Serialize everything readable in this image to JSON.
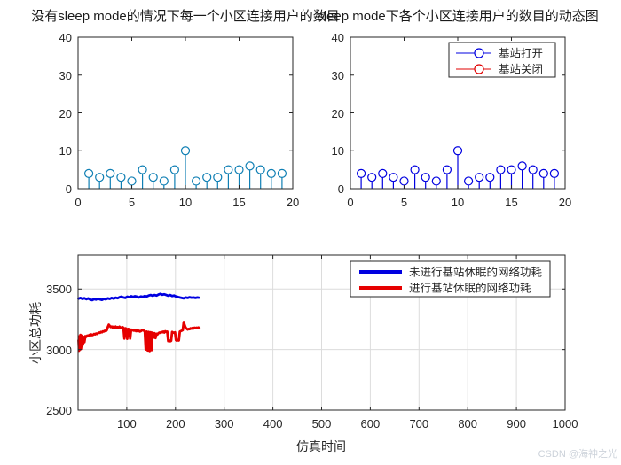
{
  "page": {
    "watermark": "CSDN @海神之光",
    "background": "#ffffff"
  },
  "chart_data": [
    {
      "type": "stem",
      "title": "没有sleep mode的情况下每一个小区连接用户的数目",
      "x": [
        1,
        2,
        3,
        4,
        5,
        6,
        7,
        8,
        9,
        10,
        11,
        12,
        13,
        14,
        15,
        16,
        17,
        18,
        19
      ],
      "values": [
        4,
        3,
        4,
        3,
        2,
        5,
        3,
        2,
        5,
        10,
        2,
        3,
        3,
        5,
        5,
        6,
        5,
        4,
        4
      ],
      "xlim": [
        0,
        20
      ],
      "ylim": [
        0,
        40
      ],
      "xticks": [
        0,
        5,
        10,
        15,
        20
      ],
      "yticks": [
        0,
        10,
        20,
        30,
        40
      ],
      "grid": false,
      "color": "#0f7fb4"
    },
    {
      "type": "stem",
      "title": "sleep mode下各个小区连接用户的数目的动态图",
      "x": [
        1,
        2,
        3,
        4,
        5,
        6,
        7,
        8,
        9,
        10,
        11,
        12,
        13,
        14,
        15,
        16,
        17,
        18,
        19
      ],
      "values": [
        4,
        3,
        4,
        3,
        2,
        5,
        3,
        2,
        5,
        10,
        2,
        3,
        3,
        5,
        5,
        6,
        5,
        4,
        4
      ],
      "xlim": [
        0,
        20
      ],
      "ylim": [
        0,
        40
      ],
      "xticks": [
        0,
        5,
        10,
        15,
        20
      ],
      "yticks": [
        0,
        10,
        20,
        30,
        40
      ],
      "grid": false,
      "color": "#0000e0",
      "legend": {
        "marker": "circle",
        "position": "top-right",
        "entries": [
          {
            "label": "基站打开",
            "color": "#0000e0"
          },
          {
            "label": "基站关闭",
            "color": "#e00000"
          }
        ]
      }
    },
    {
      "type": "line",
      "xlabel": "仿真时间",
      "ylabel": "小区总功耗",
      "xlim": [
        0,
        1000
      ],
      "ylim": [
        2500,
        3780
      ],
      "xticks": [
        100,
        200,
        300,
        400,
        500,
        600,
        700,
        800,
        900,
        1000
      ],
      "yticks": [
        2500,
        3000,
        3500
      ],
      "grid": true,
      "legend": {
        "marker": "line",
        "position": "top-right",
        "entries": [
          {
            "label": "未进行基站休眠的网络功耗",
            "color": "#0000e0"
          },
          {
            "label": "进行基站休眠的网络功耗",
            "color": "#e60000"
          }
        ]
      },
      "series": [
        {
          "name": "未进行基站休眠的网络功耗",
          "color": "#0000e0",
          "width": 2.8,
          "points": [
            [
              1,
              3420
            ],
            [
              5,
              3426
            ],
            [
              9,
              3418
            ],
            [
              13,
              3424
            ],
            [
              17,
              3416
            ],
            [
              21,
              3422
            ],
            [
              25,
              3412
            ],
            [
              29,
              3408
            ],
            [
              33,
              3416
            ],
            [
              37,
              3412
            ],
            [
              41,
              3420
            ],
            [
              45,
              3414
            ],
            [
              49,
              3410
            ],
            [
              53,
              3418
            ],
            [
              57,
              3414
            ],
            [
              61,
              3422
            ],
            [
              65,
              3418
            ],
            [
              69,
              3426
            ],
            [
              73,
              3420
            ],
            [
              77,
              3428
            ],
            [
              81,
              3424
            ],
            [
              85,
              3432
            ],
            [
              89,
              3436
            ],
            [
              93,
              3430
            ],
            [
              97,
              3426
            ],
            [
              101,
              3436
            ],
            [
              105,
              3432
            ],
            [
              109,
              3440
            ],
            [
              113,
              3434
            ],
            [
              117,
              3440
            ],
            [
              121,
              3436
            ],
            [
              125,
              3430
            ],
            [
              129,
              3438
            ],
            [
              133,
              3434
            ],
            [
              137,
              3442
            ],
            [
              141,
              3438
            ],
            [
              145,
              3446
            ],
            [
              149,
              3450
            ],
            [
              153,
              3444
            ],
            [
              157,
              3450
            ],
            [
              161,
              3446
            ],
            [
              165,
              3454
            ],
            [
              169,
              3460
            ],
            [
              173,
              3452
            ],
            [
              177,
              3456
            ],
            [
              181,
              3450
            ],
            [
              185,
              3444
            ],
            [
              189,
              3450
            ],
            [
              193,
              3442
            ],
            [
              197,
              3446
            ],
            [
              201,
              3438
            ],
            [
              205,
              3434
            ],
            [
              209,
              3430
            ],
            [
              213,
              3426
            ],
            [
              217,
              3422
            ],
            [
              221,
              3430
            ],
            [
              225,
              3426
            ],
            [
              229,
              3432
            ],
            [
              233,
              3428
            ],
            [
              237,
              3430
            ],
            [
              241,
              3426
            ],
            [
              245,
              3430
            ],
            [
              248,
              3428
            ]
          ]
        },
        {
          "name": "进行基站休眠的网络功耗",
          "color": "#e60000",
          "width": 2.8,
          "points": [
            [
              1,
              3075
            ],
            [
              2,
              2990
            ],
            [
              3,
              3110
            ],
            [
              4,
              3000
            ],
            [
              5,
              3120
            ],
            [
              6,
              3005
            ],
            [
              7,
              3115
            ],
            [
              8,
              3025
            ],
            [
              9,
              3110
            ],
            [
              10,
              3040
            ],
            [
              11,
              3105
            ],
            [
              13,
              3060
            ],
            [
              15,
              3110
            ],
            [
              17,
              3105
            ],
            [
              19,
              3115
            ],
            [
              21,
              3110
            ],
            [
              23,
              3120
            ],
            [
              25,
              3115
            ],
            [
              27,
              3125
            ],
            [
              29,
              3118
            ],
            [
              31,
              3122
            ],
            [
              33,
              3128
            ],
            [
              35,
              3125
            ],
            [
              37,
              3132
            ],
            [
              39,
              3128
            ],
            [
              41,
              3135
            ],
            [
              43,
              3140
            ],
            [
              45,
              3138
            ],
            [
              47,
              3145
            ],
            [
              49,
              3142
            ],
            [
              51,
              3150
            ],
            [
              53,
              3148
            ],
            [
              55,
              3155
            ],
            [
              57,
              3152
            ],
            [
              59,
              3160
            ],
            [
              61,
              3185
            ],
            [
              63,
              3205
            ],
            [
              65,
              3195
            ],
            [
              67,
              3185
            ],
            [
              69,
              3190
            ],
            [
              71,
              3180
            ],
            [
              73,
              3188
            ],
            [
              75,
              3182
            ],
            [
              77,
              3190
            ],
            [
              79,
              3178
            ],
            [
              81,
              3185
            ],
            [
              83,
              3180
            ],
            [
              85,
              3188
            ],
            [
              87,
              3182
            ],
            [
              89,
              3178
            ],
            [
              91,
              3185
            ],
            [
              93,
              3180
            ],
            [
              95,
              3090
            ],
            [
              97,
              3175
            ],
            [
              99,
              3172
            ],
            [
              101,
              3088
            ],
            [
              103,
              3170
            ],
            [
              105,
              3168
            ],
            [
              107,
              3090
            ],
            [
              109,
              3165
            ],
            [
              111,
              3160
            ],
            [
              113,
              3158
            ],
            [
              115,
              3155
            ],
            [
              117,
              3160
            ],
            [
              119,
              3152
            ],
            [
              121,
              3158
            ],
            [
              123,
              3150
            ],
            [
              125,
              3155
            ],
            [
              127,
              3148
            ],
            [
              129,
              3152
            ],
            [
              131,
              3158
            ],
            [
              133,
              3162
            ],
            [
              135,
              3155
            ],
            [
              137,
              3150
            ],
            [
              139,
              3000
            ],
            [
              141,
              3148
            ],
            [
              143,
              2992
            ],
            [
              145,
              3145
            ],
            [
              147,
              2988
            ],
            [
              149,
              3142
            ],
            [
              151,
              2995
            ],
            [
              153,
              3140
            ],
            [
              155,
              3098
            ],
            [
              157,
              3135
            ],
            [
              159,
              3095
            ],
            [
              161,
              3130
            ],
            [
              163,
              3125
            ],
            [
              165,
              3135
            ],
            [
              167,
              3140
            ],
            [
              169,
              3138
            ],
            [
              171,
              3145
            ],
            [
              173,
              3142
            ],
            [
              175,
              3148
            ],
            [
              177,
              3140
            ],
            [
              179,
              3150
            ],
            [
              181,
              3145
            ],
            [
              183,
              3148
            ],
            [
              185,
              3070
            ],
            [
              187,
              3075
            ],
            [
              189,
              3068
            ],
            [
              191,
              3072
            ],
            [
              193,
              3145
            ],
            [
              195,
              3140
            ],
            [
              197,
              3138
            ],
            [
              199,
              3142
            ],
            [
              201,
              3078
            ],
            [
              203,
              3072
            ],
            [
              205,
              3080
            ],
            [
              207,
              3075
            ],
            [
              209,
              3148
            ],
            [
              211,
              3152
            ],
            [
              213,
              3155
            ],
            [
              215,
              3160
            ],
            [
              217,
              3228
            ],
            [
              219,
              3200
            ],
            [
              221,
              3180
            ],
            [
              223,
              3172
            ],
            [
              225,
              3165
            ],
            [
              227,
              3170
            ],
            [
              229,
              3168
            ],
            [
              231,
              3175
            ],
            [
              233,
              3172
            ],
            [
              235,
              3178
            ],
            [
              237,
              3174
            ],
            [
              239,
              3180
            ],
            [
              241,
              3176
            ],
            [
              243,
              3180
            ],
            [
              245,
              3178
            ],
            [
              247,
              3182
            ],
            [
              249,
              3178
            ]
          ]
        }
      ]
    }
  ]
}
